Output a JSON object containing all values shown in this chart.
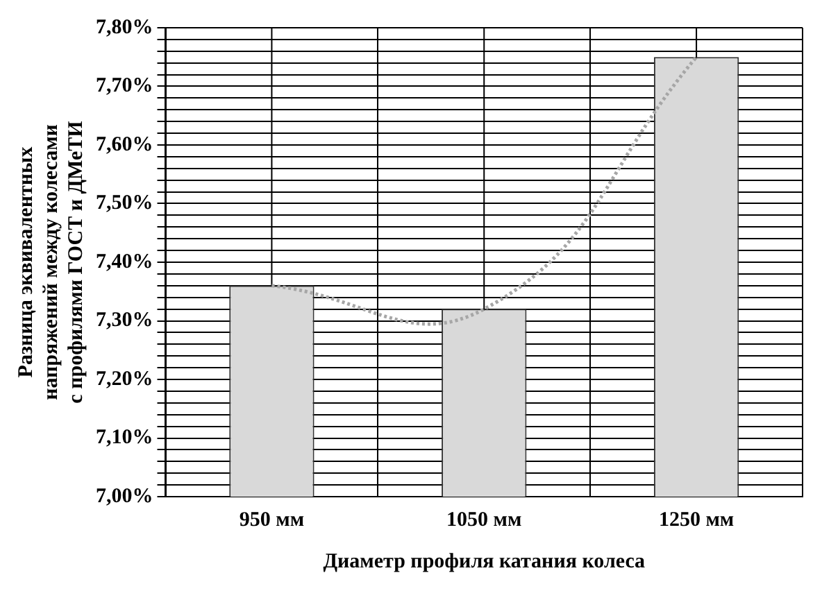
{
  "chart_data": {
    "type": "bar",
    "xlabel": "Диаметр профиля катания колеса",
    "ylabel": "Разница эквивалентных\nнапряжений между колесами\nс профилями ГОСТ и ДМеТИ",
    "categories": [
      "950 мм",
      "1050 мм",
      "1250 мм"
    ],
    "series": [
      {
        "color": "#d9d9d9",
        "values": [
          7.36,
          7.32,
          7.75
        ]
      },
      {
        "type": "line",
        "color": "#a6a6a6",
        "line_style": "dotted",
        "x": [
          "950 мм",
          "1050 мм",
          "1250 мм"
        ],
        "values": [
          7.36,
          7.32,
          7.75
        ]
      }
    ],
    "ylim": [
      7.0,
      7.8
    ],
    "yticks": [
      {
        "value": 7.0,
        "label": "7,00%"
      },
      {
        "value": 7.02,
        "label": null
      },
      {
        "value": 7.04,
        "label": null
      },
      {
        "value": 7.06,
        "label": null
      },
      {
        "value": 7.08,
        "label": null
      },
      {
        "value": 7.1,
        "label": "7,10%"
      },
      {
        "value": 7.12,
        "label": null
      },
      {
        "value": 7.14,
        "label": null
      },
      {
        "value": 7.16,
        "label": null
      },
      {
        "value": 7.18,
        "label": null
      },
      {
        "value": 7.2,
        "label": "7,20%"
      },
      {
        "value": 7.22,
        "label": null
      },
      {
        "value": 7.24,
        "label": null
      },
      {
        "value": 7.26,
        "label": null
      },
      {
        "value": 7.28,
        "label": null
      },
      {
        "value": 7.3,
        "label": "7,30%"
      },
      {
        "value": 7.32,
        "label": null
      },
      {
        "value": 7.34,
        "label": null
      },
      {
        "value": 7.36,
        "label": null
      },
      {
        "value": 7.38,
        "label": null
      },
      {
        "value": 7.4,
        "label": "7,40%"
      },
      {
        "value": 7.42,
        "label": null
      },
      {
        "value": 7.44,
        "label": null
      },
      {
        "value": 7.46,
        "label": null
      },
      {
        "value": 7.48,
        "label": null
      },
      {
        "value": 7.5,
        "label": "7,50%"
      },
      {
        "value": 7.52,
        "label": null
      },
      {
        "value": 7.54,
        "label": null
      },
      {
        "value": 7.56,
        "label": null
      },
      {
        "value": 7.58,
        "label": null
      },
      {
        "value": 7.6,
        "label": "7,60%"
      },
      {
        "value": 7.62,
        "label": null
      },
      {
        "value": 7.64,
        "label": null
      },
      {
        "value": 7.66,
        "label": null
      },
      {
        "value": 7.68,
        "label": null
      },
      {
        "value": 7.7,
        "label": "7,70%"
      },
      {
        "value": 7.72,
        "label": null
      },
      {
        "value": 7.74,
        "label": null
      },
      {
        "value": 7.76,
        "label": null
      },
      {
        "value": 7.78,
        "label": null
      },
      {
        "value": 7.8,
        "label": "7,80%"
      }
    ],
    "grid": true,
    "legend": false
  }
}
